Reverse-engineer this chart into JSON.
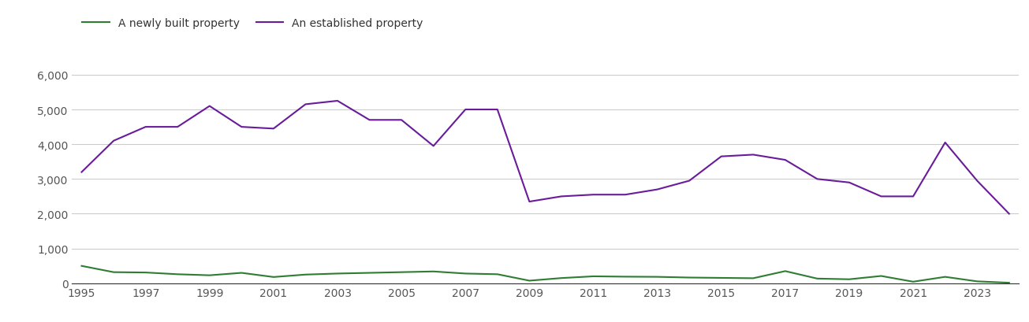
{
  "years": [
    1995,
    1996,
    1997,
    1998,
    1999,
    2000,
    2001,
    2002,
    2003,
    2004,
    2005,
    2006,
    2007,
    2008,
    2009,
    2010,
    2011,
    2012,
    2013,
    2014,
    2015,
    2016,
    2017,
    2018,
    2019,
    2020,
    2021,
    2022,
    2023,
    2024
  ],
  "new_homes": [
    500,
    320,
    310,
    260,
    230,
    300,
    180,
    250,
    280,
    300,
    320,
    340,
    280,
    260,
    75,
    150,
    200,
    190,
    185,
    165,
    155,
    145,
    350,
    135,
    115,
    210,
    45,
    185,
    55,
    15
  ],
  "established_homes": [
    3200,
    4100,
    4500,
    4500,
    5100,
    4500,
    4450,
    5150,
    5250,
    4700,
    4700,
    3950,
    5000,
    5000,
    2350,
    2500,
    2550,
    2550,
    2700,
    2950,
    3650,
    3700,
    3550,
    3000,
    2900,
    2500,
    2500,
    4050,
    2950,
    2000
  ],
  "new_homes_color": "#2e7d32",
  "established_homes_color": "#6a1b9a",
  "new_homes_label": "A newly built property",
  "established_homes_label": "An established property",
  "ylim": [
    0,
    6500
  ],
  "yticks": [
    0,
    1000,
    2000,
    3000,
    4000,
    5000,
    6000
  ],
  "ytick_labels": [
    "0",
    "1,000",
    "2,000",
    "3,000",
    "4,000",
    "5,000",
    "6,000"
  ],
  "xticks": [
    1995,
    1997,
    1999,
    2001,
    2003,
    2005,
    2007,
    2009,
    2011,
    2013,
    2015,
    2017,
    2019,
    2021,
    2023
  ],
  "background_color": "#ffffff",
  "grid_color": "#cccccc",
  "line_width": 1.5,
  "tick_fontsize": 10,
  "legend_fontsize": 10
}
